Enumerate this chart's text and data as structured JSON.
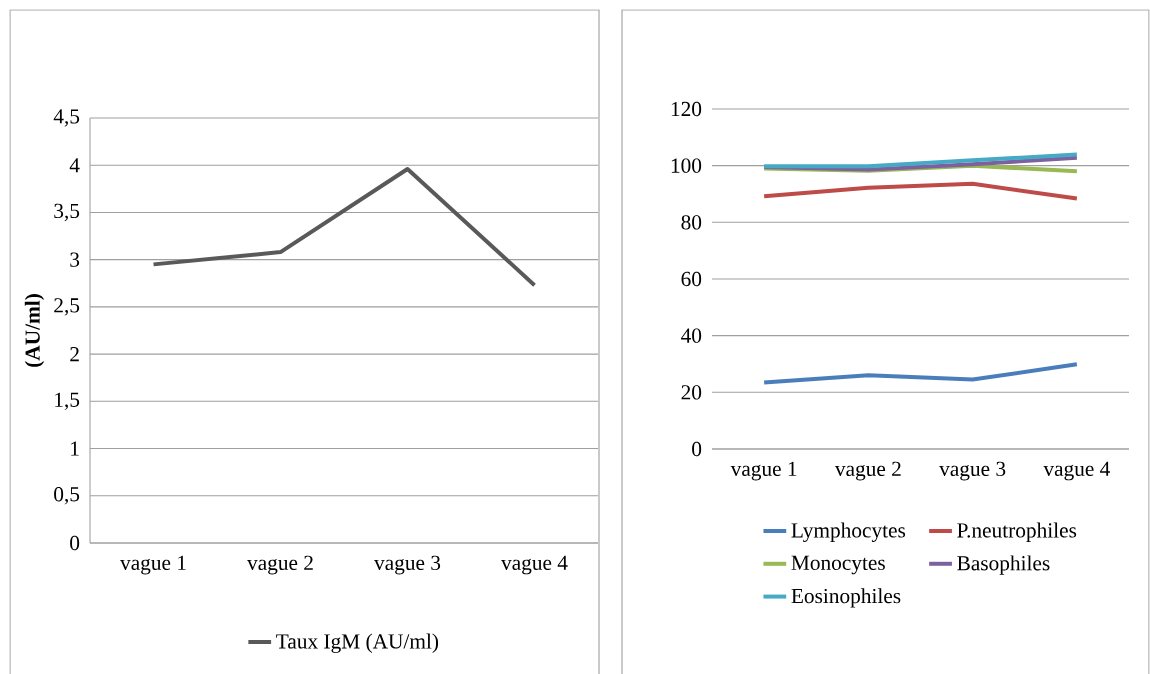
{
  "chart_data": [
    {
      "type": "line",
      "categories": [
        "vague 1",
        "vague 2",
        "vague 3",
        "vague 4"
      ],
      "ylabel": "(AU/ml)",
      "ylim": [
        0,
        4.5
      ],
      "yticks": [
        0,
        {
          "value": 0.5,
          "label": "0,5"
        },
        1,
        {
          "value": 1.5,
          "label": "1,5"
        },
        2,
        {
          "value": 2.5,
          "label": "2,5"
        },
        3,
        {
          "value": 3.5,
          "label": "3,5"
        },
        4,
        {
          "value": 4.5,
          "label": "4,5"
        }
      ],
      "grid": "y",
      "legend": "bottom",
      "series": [
        {
          "name": "Taux IgM (AU/ml)",
          "color": "#595959",
          "values": [
            2.95,
            3.08,
            3.96,
            2.73
          ]
        }
      ]
    },
    {
      "type": "line",
      "categories": [
        "vague 1",
        "vague 2",
        "vague 3",
        "vague 4"
      ],
      "ylim": [
        0,
        120
      ],
      "yticks": [
        0,
        20,
        40,
        60,
        80,
        100,
        120
      ],
      "grid": "y",
      "legend": "bottom",
      "series": [
        {
          "name": "Lymphocytes",
          "color": "#4a7ebb",
          "values": [
            23.5,
            26,
            24.5,
            29.9
          ]
        },
        {
          "name": "P.neutrophiles",
          "color": "#be4b48",
          "values": [
            89.2,
            92.2,
            93.6,
            88.4
          ]
        },
        {
          "name": "Monocytes",
          "color": "#98b954",
          "values": [
            99,
            98.2,
            100,
            98
          ]
        },
        {
          "name": "Basophiles",
          "color": "#7d60a0",
          "values": [
            99.5,
            98.6,
            100.5,
            102.8
          ]
        },
        {
          "name": "Eosinophiles",
          "color": "#46aac5",
          "values": [
            99.8,
            99.8,
            101.9,
            103.9
          ]
        }
      ]
    }
  ]
}
